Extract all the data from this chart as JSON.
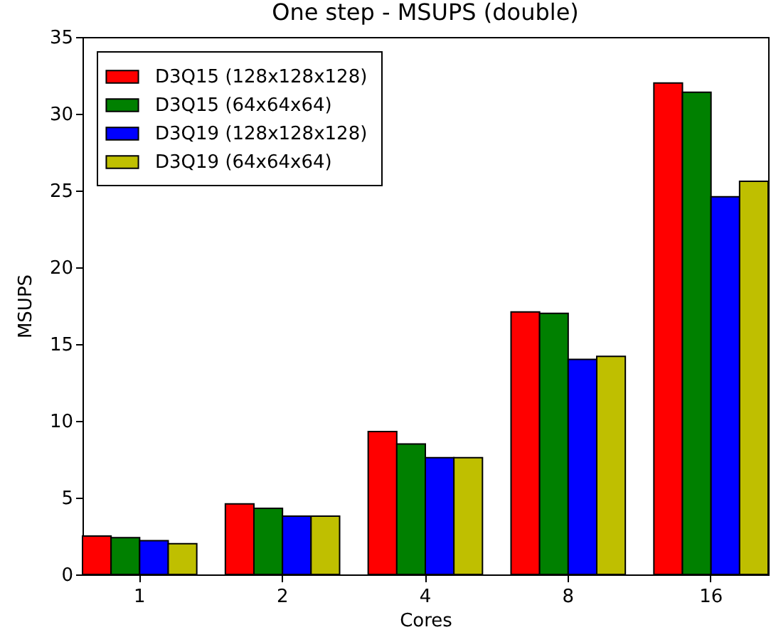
{
  "chart_data": {
    "type": "bar",
    "title": "One step - MSUPS (double)",
    "xlabel": "Cores",
    "ylabel": "MSUPS",
    "categories": [
      "1",
      "2",
      "4",
      "8",
      "16"
    ],
    "series": [
      {
        "name": "D3Q15 (128x128x128)",
        "color": "#ff0000",
        "values": [
          2.5,
          4.6,
          9.3,
          17.1,
          32.0
        ]
      },
      {
        "name": "D3Q15 (64x64x64)",
        "color": "#008000",
        "values": [
          2.4,
          4.3,
          8.5,
          17.0,
          31.4
        ]
      },
      {
        "name": "D3Q19 (128x128x128)",
        "color": "#0000ff",
        "values": [
          2.2,
          3.8,
          7.6,
          14.0,
          24.6
        ]
      },
      {
        "name": "D3Q19 (64x64x64)",
        "color": "#bfbf00",
        "values": [
          2.0,
          3.8,
          7.6,
          14.2,
          25.6
        ]
      }
    ],
    "ylim": [
      0,
      35
    ],
    "yticks": [
      0,
      5,
      10,
      15,
      20,
      25,
      30,
      35
    ],
    "grid": false,
    "legend": "top left"
  }
}
